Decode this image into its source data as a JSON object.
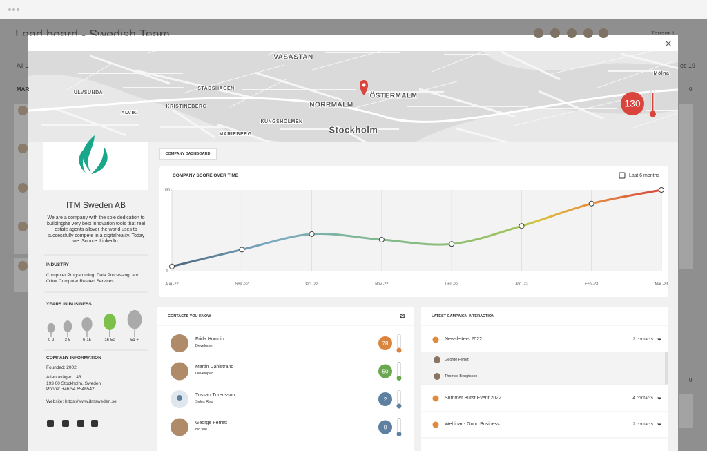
{
  "background": {
    "title": "Lead board - Swedish Team",
    "filter": "All L",
    "column": "MAR",
    "tenant": "Tenant 1",
    "date": "ec 19",
    "counts": [
      "0",
      "0"
    ]
  },
  "map": {
    "labels": [
      "VASASTAN",
      "ÖSTERMALM",
      "NORRMALM",
      "Stockholm",
      "ULVSUNDA",
      "STADSHAGEN",
      "KRISTINEBERG",
      "ALVIK",
      "KUNGSHOLMEN",
      "MARIEBERG",
      "Mölna"
    ],
    "score": 130
  },
  "company": {
    "name": "ITM Sweden AB",
    "description": "We are a company with the sole dedication to buildingthe very best innovation tools that real estate agents allover the world uses to successfully compete in a digitalreality. Today we. Source: LinkedIn.",
    "industry_label": "INDUSTRY",
    "industry": "Computer Programming, Data Processing, and Other Computer Related Services",
    "years_label": "YEARS IN BUSINESS",
    "years_stages": [
      "0-2",
      "3-5",
      "6-15",
      "16-50",
      "51 +"
    ],
    "info_label": "COMPANY INFORMATION",
    "founded": "Founded: 2002",
    "address": [
      "Atlantavägen 143",
      "193 00 Stockholm, Sweden"
    ],
    "phone": "Phone: +46 54 6546542",
    "website": "Website:  https://www.itmsweden.se"
  },
  "tab": "COMPANY DASHBOARD",
  "chart_data": {
    "type": "line",
    "title": "COMPANY SCORE OVER TIME",
    "period": "Last 6 months",
    "categories": [
      "Aug -22",
      "Sep -22",
      "Oct -22",
      "Nov -22",
      "Dec -22",
      "Jan -23",
      "Feb -23",
      "Mar -23"
    ],
    "values": [
      7,
      34,
      59,
      50,
      43,
      72,
      108,
      130
    ],
    "ylim": [
      0,
      130
    ],
    "yticks": [
      0,
      130
    ]
  },
  "contacts": {
    "title": "CONTACTS YOU KNOW",
    "count": 21,
    "items": [
      {
        "name": "Frida Houldin",
        "role": "Developer",
        "score": 78,
        "color": "#d9843f"
      },
      {
        "name": "Martin Dahlstrand",
        "role": "Developer",
        "score": 50,
        "color": "#6aa84f"
      },
      {
        "name": "Tussan Turedsson",
        "role": "Sales Rep",
        "score": 2,
        "color": "#5d7fa0"
      },
      {
        "name": "George Ferrett",
        "role": "No title",
        "score": 0,
        "color": "#5d7fa0"
      }
    ]
  },
  "campaigns": {
    "title": "LATEST CAMPAIGN INTERACTION",
    "items": [
      {
        "name": "Newsletters 2022",
        "contacts": "2 contacts",
        "people": [
          "George Ferrett",
          "Thomas Bengtsson"
        ]
      },
      {
        "name": "Summer Burst Event 2022",
        "contacts": "4 contacts"
      },
      {
        "name": "Webinar - Good Business",
        "contacts": "2 contacts"
      }
    ]
  }
}
